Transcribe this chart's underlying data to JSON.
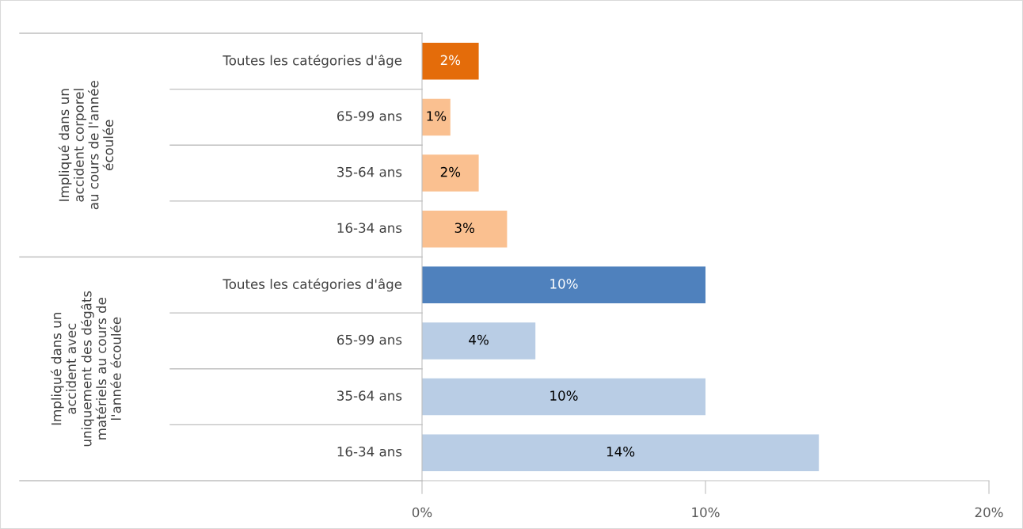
{
  "chart_data": {
    "type": "bar",
    "orientation": "horizontal",
    "categories": [
      "Toutes les catégories d'âge",
      "65-99 ans",
      "35-64 ans",
      "16-34 ans",
      "Toutes les catégories d'âge",
      "65-99 ans",
      "35-64 ans",
      "16-34 ans"
    ],
    "values": [
      2,
      1,
      2,
      3,
      10,
      4,
      10,
      14
    ],
    "colors": [
      "#e46c0a",
      "#fac090",
      "#fac090",
      "#fac090",
      "#4f81bd",
      "#b9cde5",
      "#b9cde5",
      "#b9cde5"
    ],
    "value_labels": [
      "2%",
      "1%",
      "2%",
      "3%",
      "10%",
      "4%",
      "10%",
      "14%"
    ],
    "annotations": [
      "Impliqué dans un\naccident corporel\nau cours de l'année\nécoulée",
      "Impliqué dans un\naccident avec\nuniquement des dégâts\nmatériels au cours de\nl'année écoulée"
    ],
    "xlim": [
      0,
      20
    ],
    "xticks": [
      {
        "value": 0,
        "label": "0%"
      },
      {
        "value": 10,
        "label": "10%"
      },
      {
        "value": 20,
        "label": "20%"
      }
    ],
    "grid": false
  }
}
